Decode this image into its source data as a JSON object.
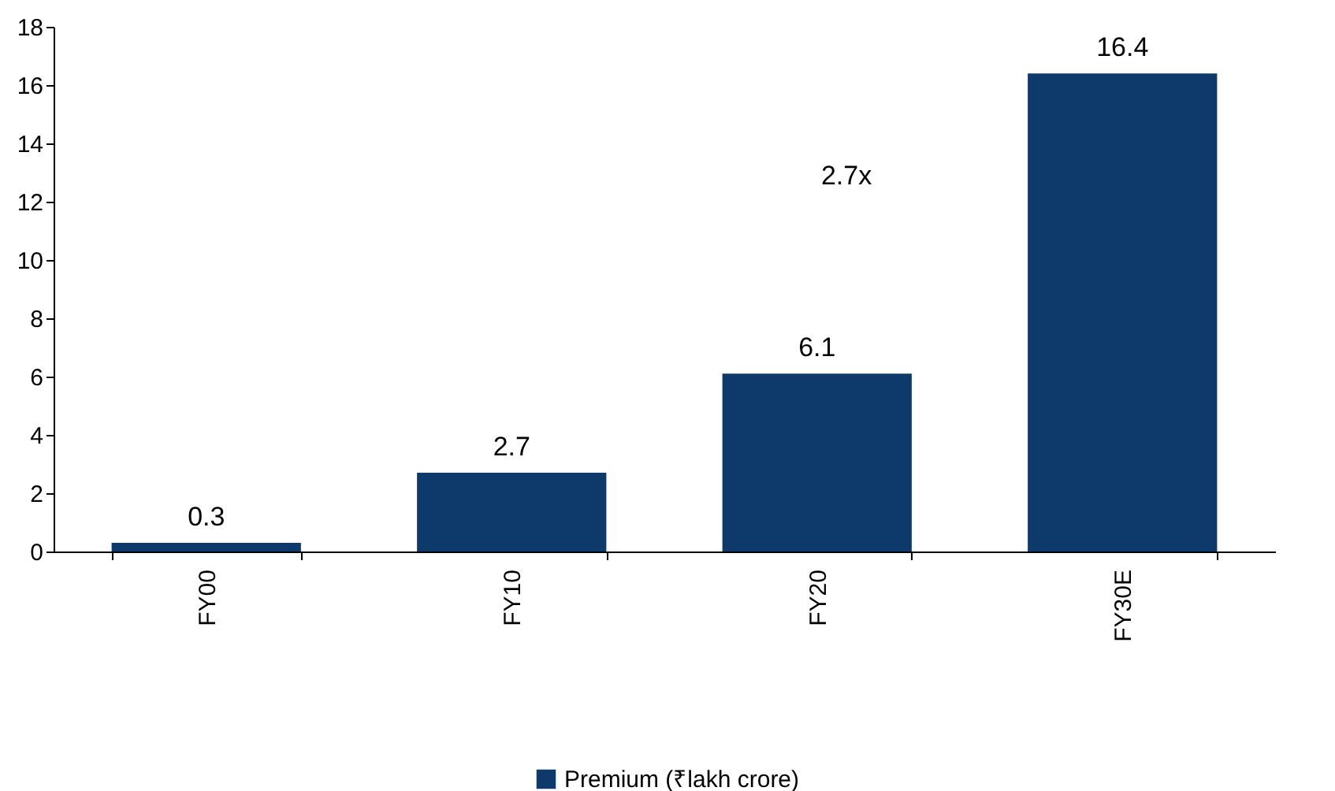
{
  "chart_data": {
    "type": "bar",
    "categories": [
      "FY00",
      "FY10",
      "FY20",
      "FY30E"
    ],
    "series": [
      {
        "name": "Premium (₹lakh crore)",
        "color": "#0d3a6b",
        "values": [
          0.3,
          2.7,
          6.1,
          16.4
        ]
      }
    ],
    "ylim": [
      0,
      18
    ],
    "yticks": [
      0,
      2,
      4,
      6,
      8,
      10,
      12,
      14,
      16,
      18
    ],
    "grid": false,
    "legend": "bottom",
    "data_labels": true,
    "annotations": [
      "2.7x"
    ]
  }
}
